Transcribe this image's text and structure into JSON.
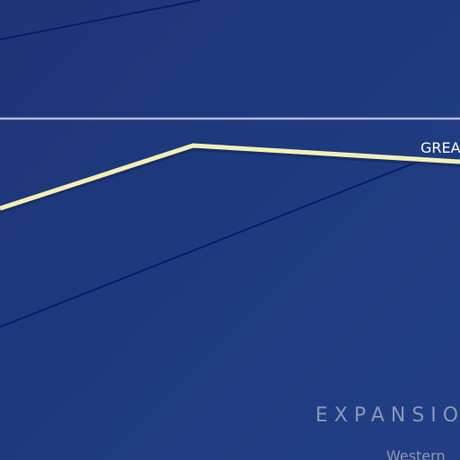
{
  "map": {
    "colors": {
      "background": "#1e3577",
      "horizon_line": "#b9b7e0",
      "route_line": "#f4efb5",
      "boundary_line": "#0b1a6e",
      "label_primary": "#ffffff",
      "label_muted": "#8c96b4"
    },
    "labels": {
      "great": "GREA",
      "expansion": "EXPANSIO",
      "western": "Western"
    }
  }
}
